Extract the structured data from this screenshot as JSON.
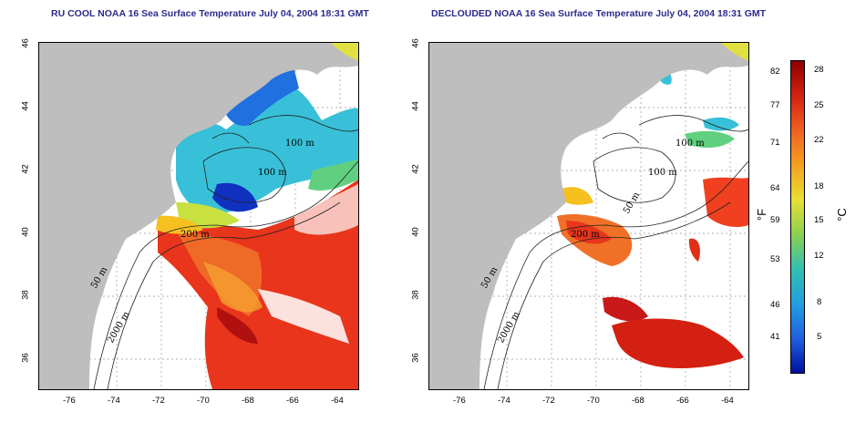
{
  "panels": [
    {
      "title": "RU COOL NOAA 16 Sea Surface Temperature July 04, 2004 18:31 GMT",
      "lon_ticks": [
        "-76",
        "-74",
        "-72",
        "-70",
        "-68",
        "-66",
        "-64"
      ],
      "lat_ticks": [
        "46",
        "44",
        "42",
        "40",
        "38",
        "36"
      ],
      "contours": [
        "100 m",
        "100 m",
        "200 m",
        "50 m",
        "2000 m"
      ]
    },
    {
      "title": "DECLOUDED NOAA 16 Sea Surface Temperature July 04, 2004 18:31 GMT",
      "lon_ticks": [
        "-76",
        "-74",
        "-72",
        "-70",
        "-68",
        "-66",
        "-64"
      ],
      "lat_ticks": [
        "46",
        "44",
        "42",
        "40",
        "38",
        "36"
      ],
      "contours": [
        "100 m",
        "100 m",
        "200 m",
        "50 m",
        "2000 m",
        "50 m"
      ]
    }
  ],
  "colorbar": {
    "fahrenheit_ticks": [
      "82",
      "77",
      "71",
      "64",
      "59",
      "53",
      "46",
      "41"
    ],
    "celsius_ticks": [
      "28",
      "25",
      "22",
      "18",
      "15",
      "12",
      "8",
      "5"
    ],
    "unit_f": "°F",
    "unit_c": "°C",
    "colors": [
      "#8b0000",
      "#d42010",
      "#f06020",
      "#f5a020",
      "#e8e030",
      "#8cd050",
      "#30c0b0",
      "#20a0e0",
      "#2060e0",
      "#0010a0"
    ]
  },
  "colors": {
    "land": "#bebebe",
    "warm": "#e8351c",
    "cool": "#38c0d8",
    "title": "#2c2c8c"
  }
}
